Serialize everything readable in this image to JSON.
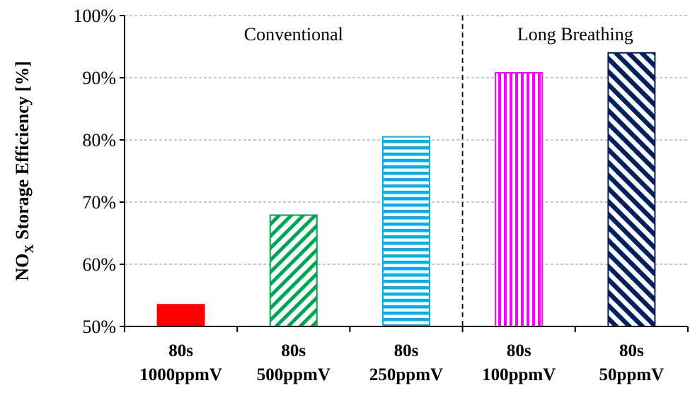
{
  "chart_data": {
    "type": "bar",
    "categories": [
      [
        "80s",
        "1000ppmV"
      ],
      [
        "80s",
        "500ppmV"
      ],
      [
        "80s",
        "250ppmV"
      ],
      [
        "80s",
        "100ppmV"
      ],
      [
        "80s",
        "50ppmV"
      ]
    ],
    "values": [
      53.5,
      67.9,
      80.5,
      90.8,
      94.0
    ],
    "ylabel_main": "NO",
    "ylabel_sub": "X",
    "ylabel_rest": " Storage Efficiency [%]",
    "ylim": [
      50,
      100
    ],
    "yticks": [
      "50%",
      "60%",
      "70%",
      "80%",
      "90%",
      "100%"
    ],
    "grid": true,
    "groups": [
      "Conventional",
      "Long Breathing"
    ],
    "bar_styles": [
      {
        "pattern": "solid",
        "color": "#ff0000"
      },
      {
        "pattern": "diagonal",
        "color": "#00a651"
      },
      {
        "pattern": "horizontal",
        "color": "#00b0f0"
      },
      {
        "pattern": "vertical",
        "color": "#ff00ff"
      },
      {
        "pattern": "diagonal-back",
        "color": "#002060"
      }
    ]
  }
}
